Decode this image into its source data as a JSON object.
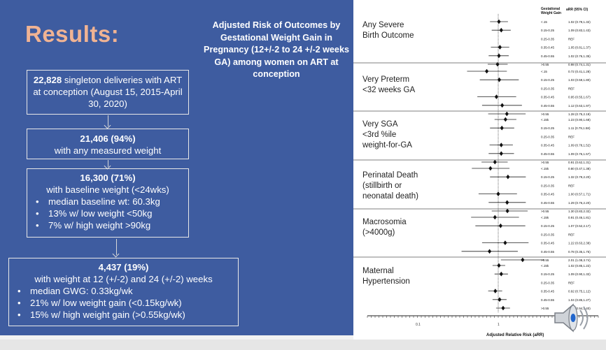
{
  "slide": {
    "title": "Results:",
    "subtitle": "Adjusted Risk of Outcomes by Gestational Weight Gain in Pregnancy (12+/-2 to 24 +/-2 weeks GA) among women on ART at conception"
  },
  "flow": [
    {
      "bold": "22,828",
      "text": " singleton deliveries with ART at conception (August 15, 2015-April 30, 2020)"
    },
    {
      "bold": "21,406 (94%)",
      "text": "with any measured weight"
    },
    {
      "bold": "16,300 (71%)",
      "text": "with baseline weight (<24wks)",
      "bullets": [
        "median baseline wt: 60.3kg",
        "13% w/ low weight <50kg",
        "7% w/ high weight >90kg"
      ]
    },
    {
      "bold": "4,437 (19%)",
      "text": "with weight at 12 (+/-2) and 24 (+/-2) weeks",
      "bullets": [
        "median GWG: 0.33kg/wk",
        "21% w/ low weight gain (<0.15kg/wk)",
        "15% w/ high weight gain (>0.55kg/wk)"
      ]
    }
  ],
  "forest": {
    "col_header_1": "Gestational Weight Gain",
    "col_header_2": "aRR (95% CI)",
    "xaxis_label": "Adjusted Relative Risk (aRR)",
    "tick_left": "0.1",
    "tick_mid": "1",
    "categories": [
      "Any Severe Birth Outcome",
      "Very Preterm <32 weeks GA",
      "Very SGA <3rd %ile weight-for-GA",
      "Perinatal Death (stillbirth or neonatal death)",
      "Macrosomia (>4000g)",
      "Maternal Hypertension"
    ],
    "cat_lines": [
      [
        "Any Severe",
        "Birth Outcome"
      ],
      [
        "Very Preterm",
        "<32 weeks GA"
      ],
      [
        "Very SGA",
        "<3rd %ile",
        "weight-for-GA"
      ],
      [
        "Perinatal Death",
        "(stillbirth or",
        "neonatal death)"
      ],
      [
        "Macrosomia",
        "(>4000g)"
      ],
      [
        "Maternal",
        "Hypertension"
      ]
    ]
  },
  "chart_data": {
    "type": "scatter",
    "title": "",
    "xlabel": "Adjusted Relative Risk (aRR)",
    "ylabel": "",
    "x_scale": "log",
    "groups": [
      {
        "name": "Any Severe Birth Outcome",
        "rows": [
          {
            "gwg": "<.15",
            "arr": 1.02,
            "ci": "1.02 (0.79,1.32)"
          },
          {
            "gwg": "0.15-0.25",
            "arr": 1.09,
            "ci": "1.09 (0.83,1.43)"
          },
          {
            "gwg": "0.25-0.35",
            "arr": 1,
            "ci": "REF"
          },
          {
            "gwg": "0.35-0.45",
            "arr": 1.05,
            "ci": "1.05 (0.81,1.37)"
          },
          {
            "gwg": "0.45-0.55",
            "arr": 1.02,
            "ci": "1.02 (0.76,1.35)"
          },
          {
            "gwg": ">0.55",
            "arr": 0.98,
            "ci": "0.98 (0.74,1.31)"
          }
        ]
      },
      {
        "name": "Very Preterm <32 weeks GA",
        "rows": [
          {
            "gwg": "<.15",
            "arr": 0.72,
            "ci": "0.72 (0.41,1.28)"
          },
          {
            "gwg": "0.15-0.25",
            "arr": 1.03,
            "ci": "1.03 (0.59,1.80)"
          },
          {
            "gwg": "0.25-0.35",
            "arr": 1,
            "ci": "REF"
          },
          {
            "gwg": "0.35-0.45",
            "arr": 0.95,
            "ci": "0.95 (0.55,1.67)"
          },
          {
            "gwg": "0.45-0.55",
            "arr": 1.12,
            "ci": "1.12 (0.63,1.97)"
          },
          {
            "gwg": ">0.55",
            "arr": 1.28,
            "ci": "1.28 (0.75,2.19)"
          }
        ]
      },
      {
        "name": "Very SGA <3rd %ile weight-for-GA",
        "rows": [
          {
            "gwg": "<.15k",
            "arr": 1.23,
            "ci": "1.23 (0.90,1.68)"
          },
          {
            "gwg": "0.15-0.25",
            "arr": 1.11,
            "ci": "1.11 (0.79,1.58)"
          },
          {
            "gwg": "0.25-0.35",
            "arr": 1,
            "ci": "REF"
          },
          {
            "gwg": "0.35-0.45",
            "arr": 1.09,
            "ci": "1.09 (0.78,1.52)"
          },
          {
            "gwg": "0.45-0.55",
            "arr": 1.09,
            "ci": "1.09 (0.76,1.57)"
          },
          {
            "gwg": ">0.55",
            "arr": 0.91,
            "ci": "0.91 (0.62,1.31)"
          }
        ]
      },
      {
        "name": "Perinatal Death",
        "rows": [
          {
            "gwg": "<.15k",
            "arr": 0.8,
            "ci": "0.80 (0.47,1.38)"
          },
          {
            "gwg": "0.15-0.25",
            "arr": 1.32,
            "ci": "1.32 (0.79,2.20)"
          },
          {
            "gwg": "0.25-0.35",
            "arr": 1,
            "ci": "REF"
          },
          {
            "gwg": "0.35-0.45",
            "arr": 1.0,
            "ci": "1.00 (0.57,1.71)"
          },
          {
            "gwg": "0.45-0.55",
            "arr": 1.29,
            "ci": "1.29 (0.76,2.20)"
          },
          {
            "gwg": ">0.55",
            "arr": 1.3,
            "ci": "1.30 (0.83,2.32)"
          }
        ]
      },
      {
        "name": "Macrosomia (>4000g)",
        "rows": [
          {
            "gwg": "<.15k",
            "arr": 0.91,
            "ci": "0.91 (0.46,1.81)"
          },
          {
            "gwg": "0.15-0.25",
            "arr": 1.07,
            "ci": "1.07 (0.52,2.17)"
          },
          {
            "gwg": "0.25-0.35",
            "arr": 1,
            "ci": "REF"
          },
          {
            "gwg": "0.35-0.45",
            "arr": 1.22,
            "ci": "1.22 (0.63,2.38)"
          },
          {
            "gwg": "0.45-0.55",
            "arr": 0.78,
            "ci": "0.78 (0.35,1.75)"
          },
          {
            "gwg": ">0.55",
            "arr": 2.01,
            "ci": "2.01 (1.08,3.74)"
          }
        ]
      },
      {
        "name": "Maternal Hypertension",
        "rows": [
          {
            "gwg": "<.15k",
            "arr": 1.02,
            "ci": "1.02 (0.85,1.22)"
          },
          {
            "gwg": "0.15-0.25",
            "arr": 1.09,
            "ci": "1.09 (0.90,1.32)"
          },
          {
            "gwg": "0.25-0.35",
            "arr": 1,
            "ci": "REF"
          },
          {
            "gwg": "0.35-0.45",
            "arr": 0.92,
            "ci": "0.92 (0.75,1.12)"
          },
          {
            "gwg": "0.45-0.55",
            "arr": 1.04,
            "ci": "1.04 (0.85,1.27)"
          },
          {
            "gwg": ">0.55",
            "arr": 1.15,
            "ci": "1.15 (0.94,1.40)"
          }
        ]
      }
    ]
  },
  "colors": {
    "panel": "#3e5ca0",
    "title": "#f0b393",
    "text": "#ffffff"
  },
  "icons": {
    "audio": "speaker-icon"
  }
}
